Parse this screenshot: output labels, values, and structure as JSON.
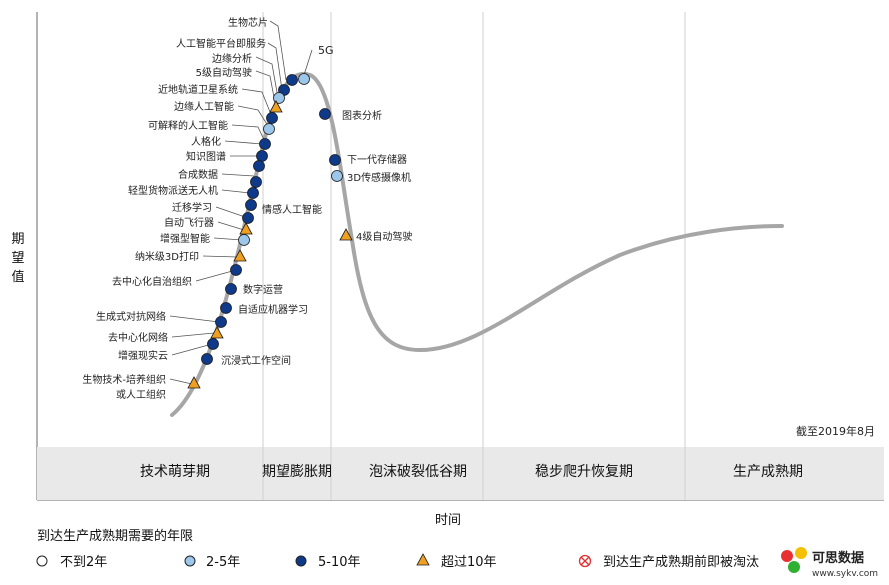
{
  "y_axis_label": [
    "期",
    "望",
    "值"
  ],
  "x_axis_label": "时间",
  "date_note": "截至2019年8月",
  "phases": [
    "技术萌芽期",
    "期望膨胀期",
    "泡沫破裂低谷期",
    "稳步爬升恢复期",
    "生产成熟期"
  ],
  "legend": {
    "title": "到达生产成熟期需要的年限",
    "items": [
      {
        "marker": "circle-white",
        "label": "不到2年",
        "color": "#ffffff"
      },
      {
        "marker": "circle-light",
        "label": "2-5年",
        "color": "#9cc6ea"
      },
      {
        "marker": "circle-dark",
        "label": "5-10年",
        "color": "#0f3a8a"
      },
      {
        "marker": "triangle-orange",
        "label": "超过10年",
        "color": "#f0a020"
      },
      {
        "marker": "x-circle-red",
        "label": "到达生产成熟期前即被淘汰",
        "color": "#e03030"
      }
    ]
  },
  "technologies": [
    {
      "label": "生物芯片",
      "category": "circle-dark"
    },
    {
      "label": "人工智能平台即服务",
      "category": "circle-dark"
    },
    {
      "label": "边缘分析",
      "category": "circle-dark"
    },
    {
      "label": "5级自动驾驶",
      "category": "circle-light"
    },
    {
      "label": "近地轨道卫星系统",
      "category": "triangle-orange"
    },
    {
      "label": "边缘人工智能",
      "category": "circle-dark"
    },
    {
      "label": "可解释的人工智能",
      "category": "circle-light"
    },
    {
      "label": "人格化",
      "category": "circle-dark"
    },
    {
      "label": "知识图谱",
      "category": "circle-dark"
    },
    {
      "label": "合成数据",
      "category": "circle-dark"
    },
    {
      "label": "轻型货物派送无人机",
      "category": "circle-dark"
    },
    {
      "label": "迁移学习",
      "category": "circle-dark"
    },
    {
      "label": "情感人工智能",
      "category": "circle-dark"
    },
    {
      "label": "自动飞行器",
      "category": "triangle-orange"
    },
    {
      "label": "增强型智能",
      "category": "circle-light"
    },
    {
      "label": "纳米级3D打印",
      "category": "triangle-orange"
    },
    {
      "label": "去中心化自治组织",
      "category": "circle-dark"
    },
    {
      "label": "数字运营",
      "category": "circle-dark"
    },
    {
      "label": "自适应机器学习",
      "category": "circle-dark"
    },
    {
      "label": "生成式对抗网络",
      "category": "circle-dark"
    },
    {
      "label": "去中心化网络",
      "category": "triangle-orange"
    },
    {
      "label": "增强现实云",
      "category": "circle-dark"
    },
    {
      "label": "沉浸式工作空间",
      "category": "circle-dark"
    },
    {
      "label": "生物技术-培养组织",
      "category": "triangle-orange"
    },
    {
      "label": "或人工组织",
      "category": "none"
    },
    {
      "label": "5G",
      "category": "circle-light"
    },
    {
      "label": "图表分析",
      "category": "circle-dark"
    },
    {
      "label": "下一代存储器",
      "category": "circle-dark"
    },
    {
      "label": "3D传感摄像机",
      "category": "circle-light"
    },
    {
      "label": "4级自动驾驶",
      "category": "triangle-orange"
    }
  ],
  "watermark": {
    "title": "可思数据",
    "subtitle": "www.sykv.com"
  }
}
